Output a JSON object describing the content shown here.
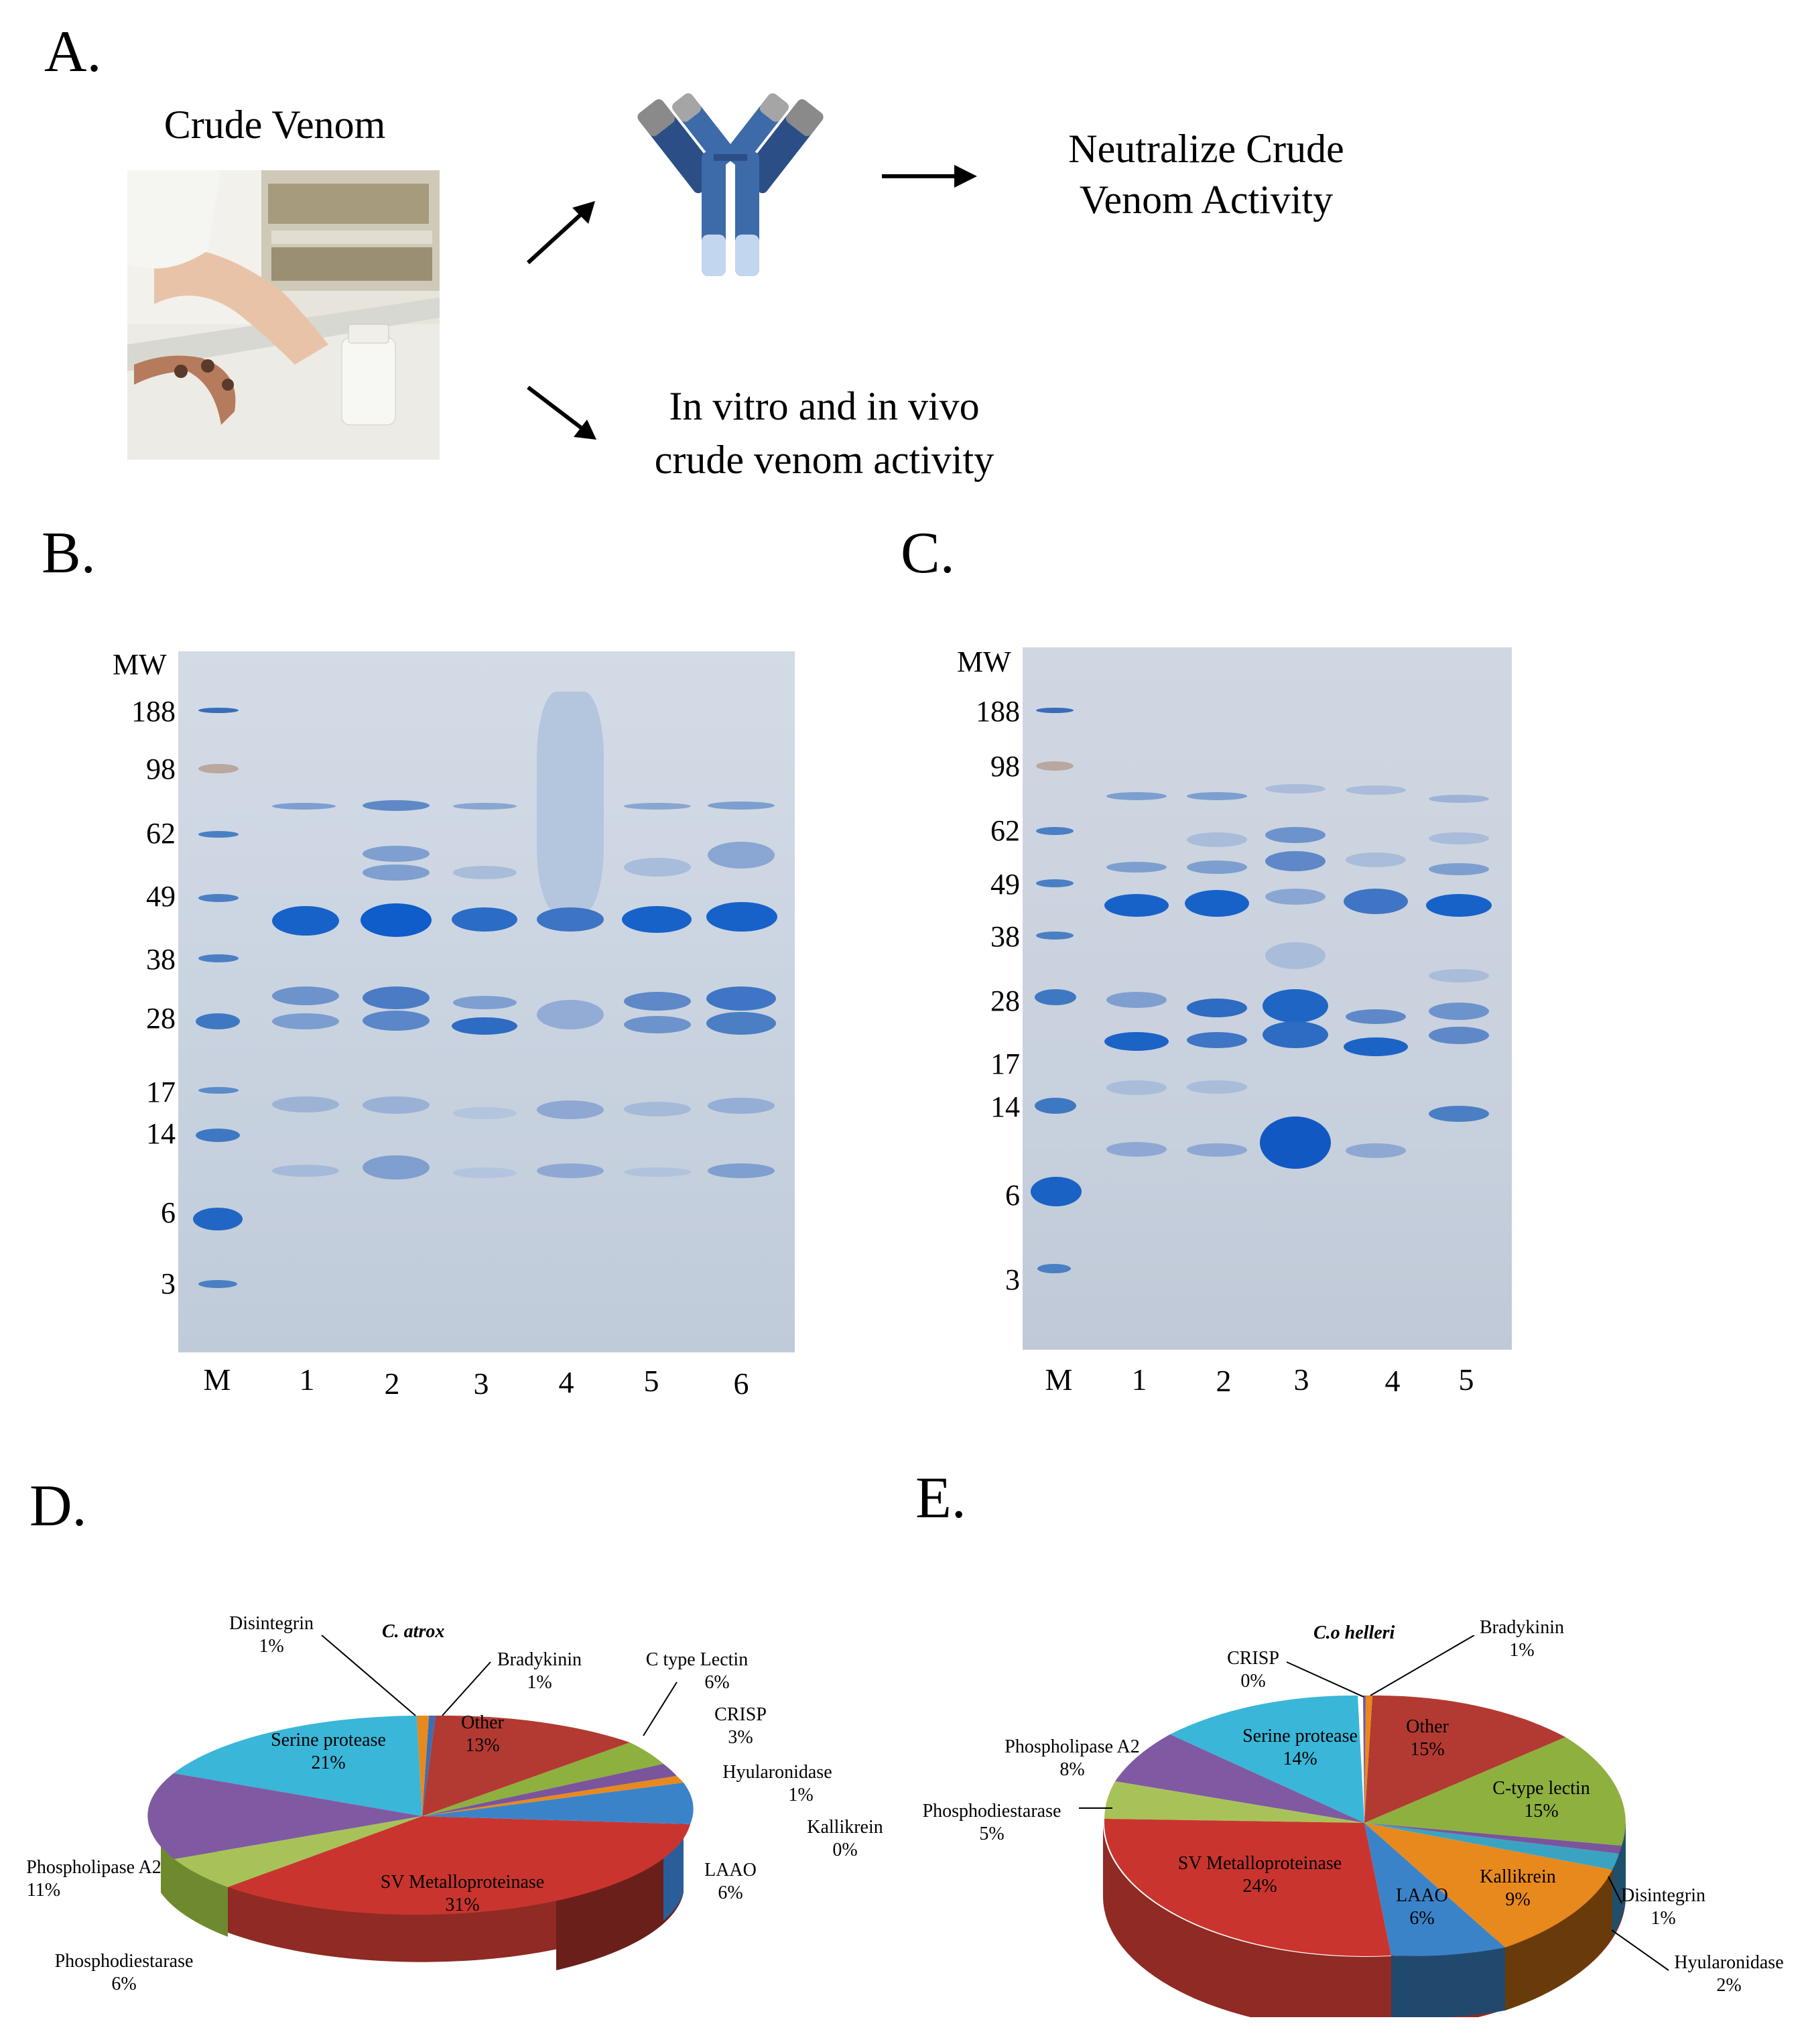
{
  "panelA": {
    "label": "A.",
    "crude_venom": "Crude Venom",
    "neutralize": [
      "Neutralize Crude",
      "Venom Activity"
    ],
    "activity": [
      "In vitro and in vivo",
      "crude venom activity"
    ]
  },
  "panelB": {
    "label": "B.",
    "mw_title": "MW",
    "mw_ticks": [
      "188",
      "98",
      "62",
      "49",
      "38",
      "28",
      "17",
      "14",
      "6",
      "3"
    ],
    "lanes": [
      "M",
      "1",
      "2",
      "3",
      "4",
      "5",
      "6"
    ]
  },
  "panelC": {
    "label": "C.",
    "mw_title": "MW",
    "mw_ticks": [
      "188",
      "98",
      "62",
      "49",
      "38",
      "28",
      "17",
      "14",
      "6",
      "3"
    ],
    "lanes": [
      "M",
      "1",
      "2",
      "3",
      "4",
      "5"
    ]
  },
  "panelD": {
    "label": "D.",
    "title": "C. atrox",
    "slices": [
      {
        "name": "Disintegrin",
        "pct": "1%",
        "color": "#e8891e"
      },
      {
        "name": "Bradykinin",
        "pct": "1%",
        "color": "#3b6fb5"
      },
      {
        "name": "Other",
        "pct": "13%",
        "color": "#b33a32"
      },
      {
        "name": "C type Lectin",
        "pct": "6%",
        "color": "#8eb03f"
      },
      {
        "name": "CRISP",
        "pct": "3%",
        "color": "#7a559c"
      },
      {
        "name": "Hyularonidase",
        "pct": "1%",
        "color": "#3ba3c2"
      },
      {
        "name": "Kallikrein",
        "pct": "0%",
        "color": "#e8891e"
      },
      {
        "name": "LAAO",
        "pct": "6%",
        "color": "#3b83c9"
      },
      {
        "name": "SV Metalloproteinase",
        "pct": "31%",
        "color": "#c9352e"
      },
      {
        "name": "Phosphodiestarase",
        "pct": "6%",
        "color": "#a8c25a"
      },
      {
        "name": "Phospholipase A2",
        "pct": "11%",
        "color": "#7f5aa3"
      },
      {
        "name": "Serine protease",
        "pct": "21%",
        "color": "#3ab6d8"
      }
    ]
  },
  "panelE": {
    "label": "E.",
    "title": "C.o helleri",
    "slices": [
      {
        "name": "CRISP",
        "pct": "0%",
        "color": "#7a559c"
      },
      {
        "name": "Bradykinin",
        "pct": "1%",
        "color": "#e8891e"
      },
      {
        "name": "Other",
        "pct": "15%",
        "color": "#b33a32"
      },
      {
        "name": "C-type lectin",
        "pct": "15%",
        "color": "#8eb03f"
      },
      {
        "name": "Disintegrin",
        "pct": "1%",
        "color": "#7a559c"
      },
      {
        "name": "Hyularonidase",
        "pct": "2%",
        "color": "#3ba3c2"
      },
      {
        "name": "Kallikrein",
        "pct": "9%",
        "color": "#e8891e"
      },
      {
        "name": "LAAO",
        "pct": "6%",
        "color": "#3b83c9"
      },
      {
        "name": "SV Metalloproteinase",
        "pct": "24%",
        "color": "#c9352e"
      },
      {
        "name": "Phosphodiestarase",
        "pct": "5%",
        "color": "#a8c25a"
      },
      {
        "name": "Phospholipase A2",
        "pct": "8%",
        "color": "#7f5aa3"
      },
      {
        "name": "Serine protease",
        "pct": "14%",
        "color": "#3ab6d8"
      }
    ]
  }
}
